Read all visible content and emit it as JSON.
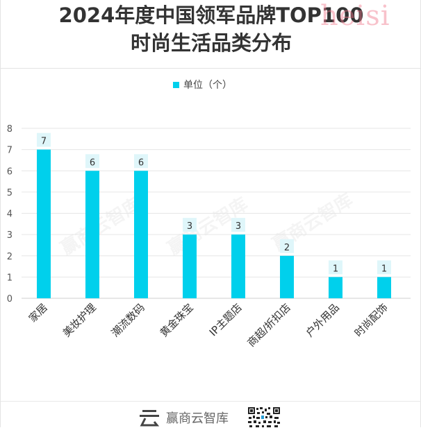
{
  "chart_data": {
    "type": "bar",
    "title": [
      "2024年度中国领军品牌TOP100",
      "时尚生活品类分布"
    ],
    "legend": "单位（个）",
    "categories": [
      "家居",
      "美妆护理",
      "潮流数码",
      "黄金珠宝",
      "IP主题店",
      "商超/折扣店",
      "户外用品",
      "时尚配饰"
    ],
    "values": [
      7,
      6,
      6,
      3,
      3,
      2,
      1,
      1
    ],
    "yticks": [
      0,
      1,
      2,
      3,
      4,
      5,
      6,
      7,
      8
    ],
    "ylim": [
      0,
      8
    ],
    "bar_color": "#00d0ec",
    "label_bg": "#dff6fa",
    "grid": true,
    "legend_position": "top-center"
  },
  "footer": {
    "brand": "赢商云智库",
    "watermark": "赢商云智库"
  }
}
